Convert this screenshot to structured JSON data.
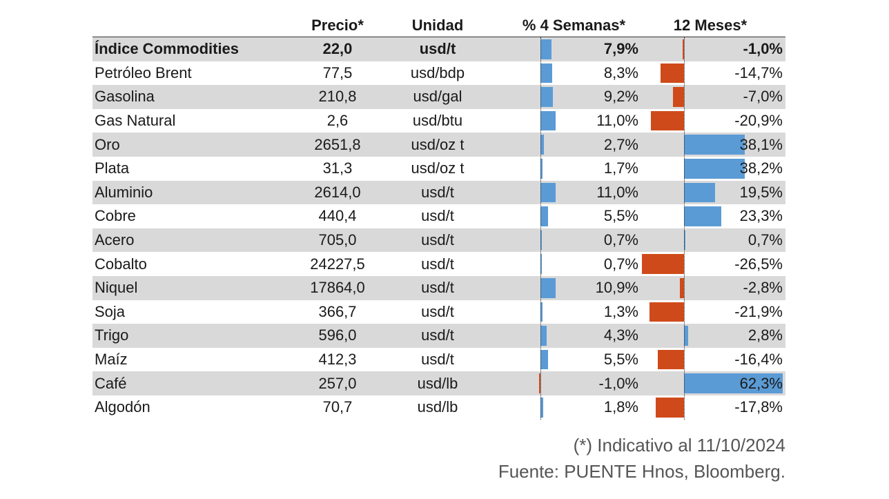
{
  "chart_data": {
    "type": "table",
    "headers": [
      "",
      "Precio*",
      "Unidad",
      "% 4 Semanas*",
      "12 Meses*"
    ],
    "rows": [
      {
        "name": "Índice Commodities",
        "price": "22,0",
        "unit": "usd/t",
        "pct4w": 7.9,
        "pct4w_label": "7,9%",
        "pct12m": -1.0,
        "pct12m_label": "-1,0%",
        "bold": true
      },
      {
        "name": "Petróleo Brent",
        "price": "77,5",
        "unit": "usd/bdp",
        "pct4w": 8.3,
        "pct4w_label": "8,3%",
        "pct12m": -14.7,
        "pct12m_label": "-14,7%"
      },
      {
        "name": "Gasolina",
        "price": "210,8",
        "unit": "usd/gal",
        "pct4w": 9.2,
        "pct4w_label": "9,2%",
        "pct12m": -7.0,
        "pct12m_label": "-7,0%"
      },
      {
        "name": "Gas Natural",
        "price": "2,6",
        "unit": "usd/btu",
        "pct4w": 11.0,
        "pct4w_label": "11,0%",
        "pct12m": -20.9,
        "pct12m_label": "-20,9%"
      },
      {
        "name": "Oro",
        "price": "2651,8",
        "unit": "usd/oz t",
        "pct4w": 2.7,
        "pct4w_label": "2,7%",
        "pct12m": 38.1,
        "pct12m_label": "38,1%"
      },
      {
        "name": "Plata",
        "price": "31,3",
        "unit": "usd/oz t",
        "pct4w": 1.7,
        "pct4w_label": "1,7%",
        "pct12m": 38.2,
        "pct12m_label": "38,2%"
      },
      {
        "name": "Aluminio",
        "price": "2614,0",
        "unit": "usd/t",
        "pct4w": 11.0,
        "pct4w_label": "11,0%",
        "pct12m": 19.5,
        "pct12m_label": "19,5%"
      },
      {
        "name": "Cobre",
        "price": "440,4",
        "unit": "usd/t",
        "pct4w": 5.5,
        "pct4w_label": "5,5%",
        "pct12m": 23.3,
        "pct12m_label": "23,3%"
      },
      {
        "name": "Acero",
        "price": "705,0",
        "unit": "usd/t",
        "pct4w": 0.7,
        "pct4w_label": "0,7%",
        "pct12m": 0.7,
        "pct12m_label": "0,7%"
      },
      {
        "name": "Cobalto",
        "price": "24227,5",
        "unit": "usd/t",
        "pct4w": 0.7,
        "pct4w_label": "0,7%",
        "pct12m": -26.5,
        "pct12m_label": "-26,5%"
      },
      {
        "name": "Niquel",
        "price": "17864,0",
        "unit": "usd/t",
        "pct4w": 10.9,
        "pct4w_label": "10,9%",
        "pct12m": -2.8,
        "pct12m_label": "-2,8%"
      },
      {
        "name": "Soja",
        "price": "366,7",
        "unit": "usd/t",
        "pct4w": 1.3,
        "pct4w_label": "1,3%",
        "pct12m": -21.9,
        "pct12m_label": "-21,9%"
      },
      {
        "name": "Trigo",
        "price": "596,0",
        "unit": "usd/t",
        "pct4w": 4.3,
        "pct4w_label": "4,3%",
        "pct12m": 2.8,
        "pct12m_label": "2,8%"
      },
      {
        "name": "Maíz",
        "price": "412,3",
        "unit": "usd/t",
        "pct4w": 5.5,
        "pct4w_label": "5,5%",
        "pct12m": -16.4,
        "pct12m_label": "-16,4%"
      },
      {
        "name": "Café",
        "price": "257,0",
        "unit": "usd/lb",
        "pct4w": -1.0,
        "pct4w_label": "-1,0%",
        "pct12m": 62.3,
        "pct12m_label": "62,3%"
      },
      {
        "name": "Algodón",
        "price": "70,7",
        "unit": "usd/lb",
        "pct4w": 1.8,
        "pct4w_label": "1,8%",
        "pct12m": -17.8,
        "pct12m_label": "-17,8%"
      }
    ],
    "colors": {
      "positive": "#5b9bd5",
      "negative": "#cf4a1a",
      "row_alt": "#d9d9d9"
    }
  },
  "footnote": "(*) Indicativo al 11/10/2024",
  "source": "Fuente: PUENTE Hnos, Bloomberg."
}
